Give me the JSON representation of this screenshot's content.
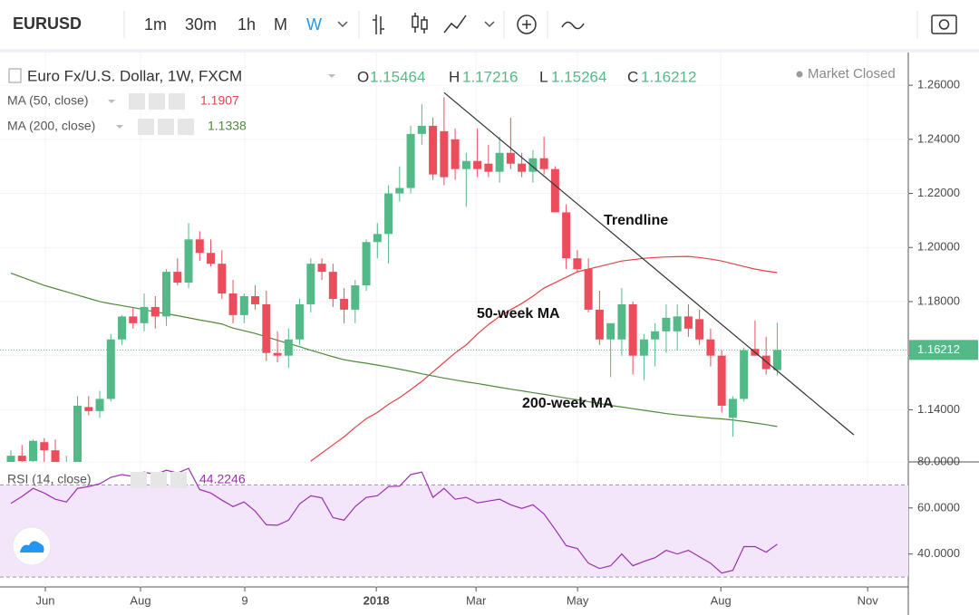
{
  "chart_data": {
    "type": "candlestick",
    "symbol": "EURUSD",
    "intervals": [
      "1m",
      "30m",
      "1h",
      "M",
      "W"
    ],
    "active_interval": 4,
    "title": "Euro Fx/U.S. Dollar, 1W, FXCM",
    "ohlc_labels": [
      "O",
      "H",
      "L",
      "C"
    ],
    "status": "Market Closed",
    "up_color": "#53b987",
    "down_color": "#eb4d5c",
    "open": [
      1.12,
      1.123,
      1.121,
      1.128,
      1.125,
      1.1195,
      1.12,
      1.141,
      1.1395,
      1.144,
      1.166,
      1.1745,
      1.172,
      1.178,
      1.1745,
      1.191,
      1.187,
      1.203,
      1.198,
      1.194,
      1.183,
      1.175,
      1.182,
      1.179,
      1.161,
      1.16,
      1.166,
      1.179,
      1.194,
      1.191,
      1.181,
      1.177,
      1.186,
      1.202,
      1.205,
      1.22,
      1.222,
      1.242,
      1.245,
      1.243,
      1.24,
      1.229,
      1.232,
      1.231,
      1.228,
      1.235,
      1.231,
      1.228,
      1.233,
      1.229,
      1.213,
      1.196,
      1.192,
      1.177,
      1.166,
      1.166,
      1.179,
      1.16,
      1.166,
      1.169,
      1.169,
      1.1745,
      1.1735,
      1.166,
      1.16,
      1.137,
      1.144,
      1.1625,
      1.16,
      1.15464
    ],
    "high": [
      1.125,
      1.127,
      1.129,
      1.1295,
      1.129,
      1.123,
      1.145,
      1.145,
      1.147,
      1.168,
      1.175,
      1.178,
      1.183,
      1.182,
      1.192,
      1.196,
      1.209,
      1.206,
      1.203,
      1.199,
      1.188,
      1.183,
      1.186,
      1.184,
      1.169,
      1.17,
      1.181,
      1.196,
      1.196,
      1.194,
      1.185,
      1.188,
      1.203,
      1.209,
      1.223,
      1.23,
      1.245,
      1.253,
      1.248,
      1.2556,
      1.244,
      1.235,
      1.244,
      1.238,
      1.241,
      1.248,
      1.235,
      1.236,
      1.241,
      1.23,
      1.216,
      1.199,
      1.196,
      1.184,
      1.172,
      1.185,
      1.18,
      1.168,
      1.172,
      1.179,
      1.179,
      1.179,
      1.177,
      1.17,
      1.162,
      1.145,
      1.163,
      1.173,
      1.167,
      1.17216
    ],
    "low": [
      1.118,
      1.117,
      1.119,
      1.12,
      1.118,
      1.117,
      1.119,
      1.138,
      1.137,
      1.143,
      1.164,
      1.17,
      1.169,
      1.17,
      1.171,
      1.186,
      1.185,
      1.195,
      1.193,
      1.181,
      1.172,
      1.172,
      1.177,
      1.158,
      1.1575,
      1.1555,
      1.164,
      1.176,
      1.188,
      1.178,
      1.172,
      1.172,
      1.184,
      1.196,
      1.194,
      1.217,
      1.22,
      1.238,
      1.225,
      1.223,
      1.225,
      1.215,
      1.226,
      1.226,
      1.224,
      1.229,
      1.226,
      1.224,
      1.227,
      1.213,
      1.192,
      1.191,
      1.176,
      1.164,
      1.152,
      1.16,
      1.153,
      1.151,
      1.156,
      1.161,
      1.162,
      1.167,
      1.164,
      1.156,
      1.139,
      1.13,
      1.143,
      1.16,
      1.153,
      1.15264
    ],
    "close": [
      1.123,
      1.121,
      1.1285,
      1.125,
      1.1195,
      1.12,
      1.1415,
      1.1395,
      1.144,
      1.166,
      1.1745,
      1.172,
      1.178,
      1.1745,
      1.191,
      1.187,
      1.203,
      1.198,
      1.194,
      1.183,
      1.175,
      1.182,
      1.179,
      1.161,
      1.16,
      1.166,
      1.179,
      1.194,
      1.191,
      1.181,
      1.177,
      1.186,
      1.202,
      1.205,
      1.22,
      1.222,
      1.242,
      1.245,
      1.227,
      1.226,
      1.229,
      1.232,
      1.229,
      1.228,
      1.235,
      1.231,
      1.228,
      1.233,
      1.229,
      1.213,
      1.196,
      1.192,
      1.177,
      1.166,
      1.172,
      1.179,
      1.16,
      1.166,
      1.169,
      1.174,
      1.1745,
      1.17,
      1.166,
      1.16,
      1.1415,
      1.144,
      1.162,
      1.16,
      1.155,
      1.16212
    ],
    "indicators": [
      {
        "name": "MA (50, close)",
        "color": "#e5414a",
        "values": [
          null,
          null,
          null,
          null,
          null,
          null,
          null,
          null,
          null,
          null,
          null,
          null,
          null,
          null,
          null,
          null,
          null,
          null,
          null,
          null,
          null,
          null,
          null,
          null,
          null,
          null,
          null,
          1.121,
          1.124,
          1.127,
          1.13,
          1.1335,
          1.1367,
          1.139,
          1.142,
          1.1445,
          1.1474,
          1.1505,
          1.154,
          1.1575,
          1.161,
          1.164,
          1.168,
          1.1715,
          1.1745,
          1.177,
          1.1793,
          1.182,
          1.185,
          1.187,
          1.189,
          1.191,
          1.192,
          1.193,
          1.194,
          1.195,
          1.1955,
          1.196,
          1.1963,
          1.1965,
          1.1966,
          1.1967,
          1.1963,
          1.1957,
          1.195,
          1.194,
          1.193,
          1.192,
          1.1913,
          1.1907
        ]
      },
      {
        "name": "MA (200, close)",
        "color": "#4e8a3a",
        "values": [
          1.1905,
          1.189,
          1.1875,
          1.186,
          1.1848,
          1.1836,
          1.1824,
          1.1812,
          1.18,
          1.1792,
          1.1785,
          1.1778,
          1.177,
          1.1762,
          1.1755,
          1.1748,
          1.174,
          1.1732,
          1.1725,
          1.1717,
          1.1702,
          1.1692,
          1.1682,
          1.167,
          1.1657,
          1.1645,
          1.1633,
          1.162,
          1.1608,
          1.1596,
          1.1585,
          1.1578,
          1.1572,
          1.1565,
          1.1558,
          1.155,
          1.1542,
          1.1533,
          1.1525,
          1.1517,
          1.151,
          1.1503,
          1.1497,
          1.149,
          1.1483,
          1.1476,
          1.147,
          1.1463,
          1.1457,
          1.145,
          1.1443,
          1.1437,
          1.143,
          1.1423,
          1.1416,
          1.141,
          1.1404,
          1.1398,
          1.1392,
          1.1386,
          1.1381,
          1.1377,
          1.1373,
          1.1369,
          1.1366,
          1.1362,
          1.1357,
          1.1351,
          1.1345,
          1.1338
        ]
      }
    ],
    "trendline": {
      "label": "Trendline",
      "color": "#333333",
      "x": [
        39,
        75.9
      ],
      "y": [
        1.2573,
        1.1307
      ]
    },
    "annotations": [
      "50-week MA",
      "200-week MA"
    ],
    "ylim": [
      1.1207,
      1.2721
    ],
    "yticks": [
      {
        "value": 1.14,
        "label": "1.14000"
      },
      {
        "value": 1.16,
        "label": "1.16000"
      },
      {
        "value": 1.18,
        "label": "1.18000"
      },
      {
        "value": 1.2,
        "label": "1.20000"
      },
      {
        "value": 1.22,
        "label": "1.22000"
      },
      {
        "value": 1.24,
        "label": "1.24000"
      },
      {
        "value": 1.26,
        "label": "1.26000"
      }
    ],
    "xlim": [
      -0.98,
      80.8
    ],
    "xticks": [
      {
        "value": 3.1,
        "label": "Jun"
      },
      {
        "value": 11.67,
        "label": "Aug"
      },
      {
        "value": 21.06,
        "label": "9"
      },
      {
        "value": 32.9,
        "label": "2018"
      },
      {
        "value": 41.88,
        "label": "Mar"
      },
      {
        "value": 51.02,
        "label": "May"
      },
      {
        "value": 63.92,
        "label": "Aug"
      },
      {
        "value": 77.14,
        "label": "Nov"
      }
    ],
    "grid": true,
    "rsi": {
      "name": "RSI (14, close)",
      "color": "#9b2fae",
      "band": [
        30,
        70
      ],
      "values": [
        62,
        65,
        68.5,
        66.5,
        63.8,
        62.6,
        68.5,
        69.3,
        70.5,
        73.3,
        74.5,
        73.7,
        75.6,
        74.5,
        76.4,
        75.2,
        77.2,
        68,
        66.5,
        63.4,
        60.6,
        62.6,
        58.6,
        52.7,
        52.5,
        54.7,
        61.8,
        65.3,
        64.4,
        55.8,
        54.7,
        60.6,
        64.6,
        65.3,
        69.3,
        69.5,
        74.5,
        75.6,
        64.6,
        68.5,
        63.8,
        64.6,
        62.2,
        63,
        63.8,
        61.4,
        59.8,
        61.4,
        57.4,
        50.7,
        43.6,
        42.4,
        36,
        33.7,
        34.9,
        40,
        34.9,
        36.8,
        38.4,
        41.6,
        40,
        41.6,
        38.8,
        36,
        31.7,
        32.9,
        43.2,
        43.2,
        40.8,
        44.2246
      ],
      "ylim": [
        25.7,
        80
      ],
      "yticks": [
        {
          "value": 40,
          "label": "40.0000"
        },
        {
          "value": 60,
          "label": "60.0000"
        },
        {
          "value": 80,
          "label": "80.0000"
        }
      ]
    }
  }
}
